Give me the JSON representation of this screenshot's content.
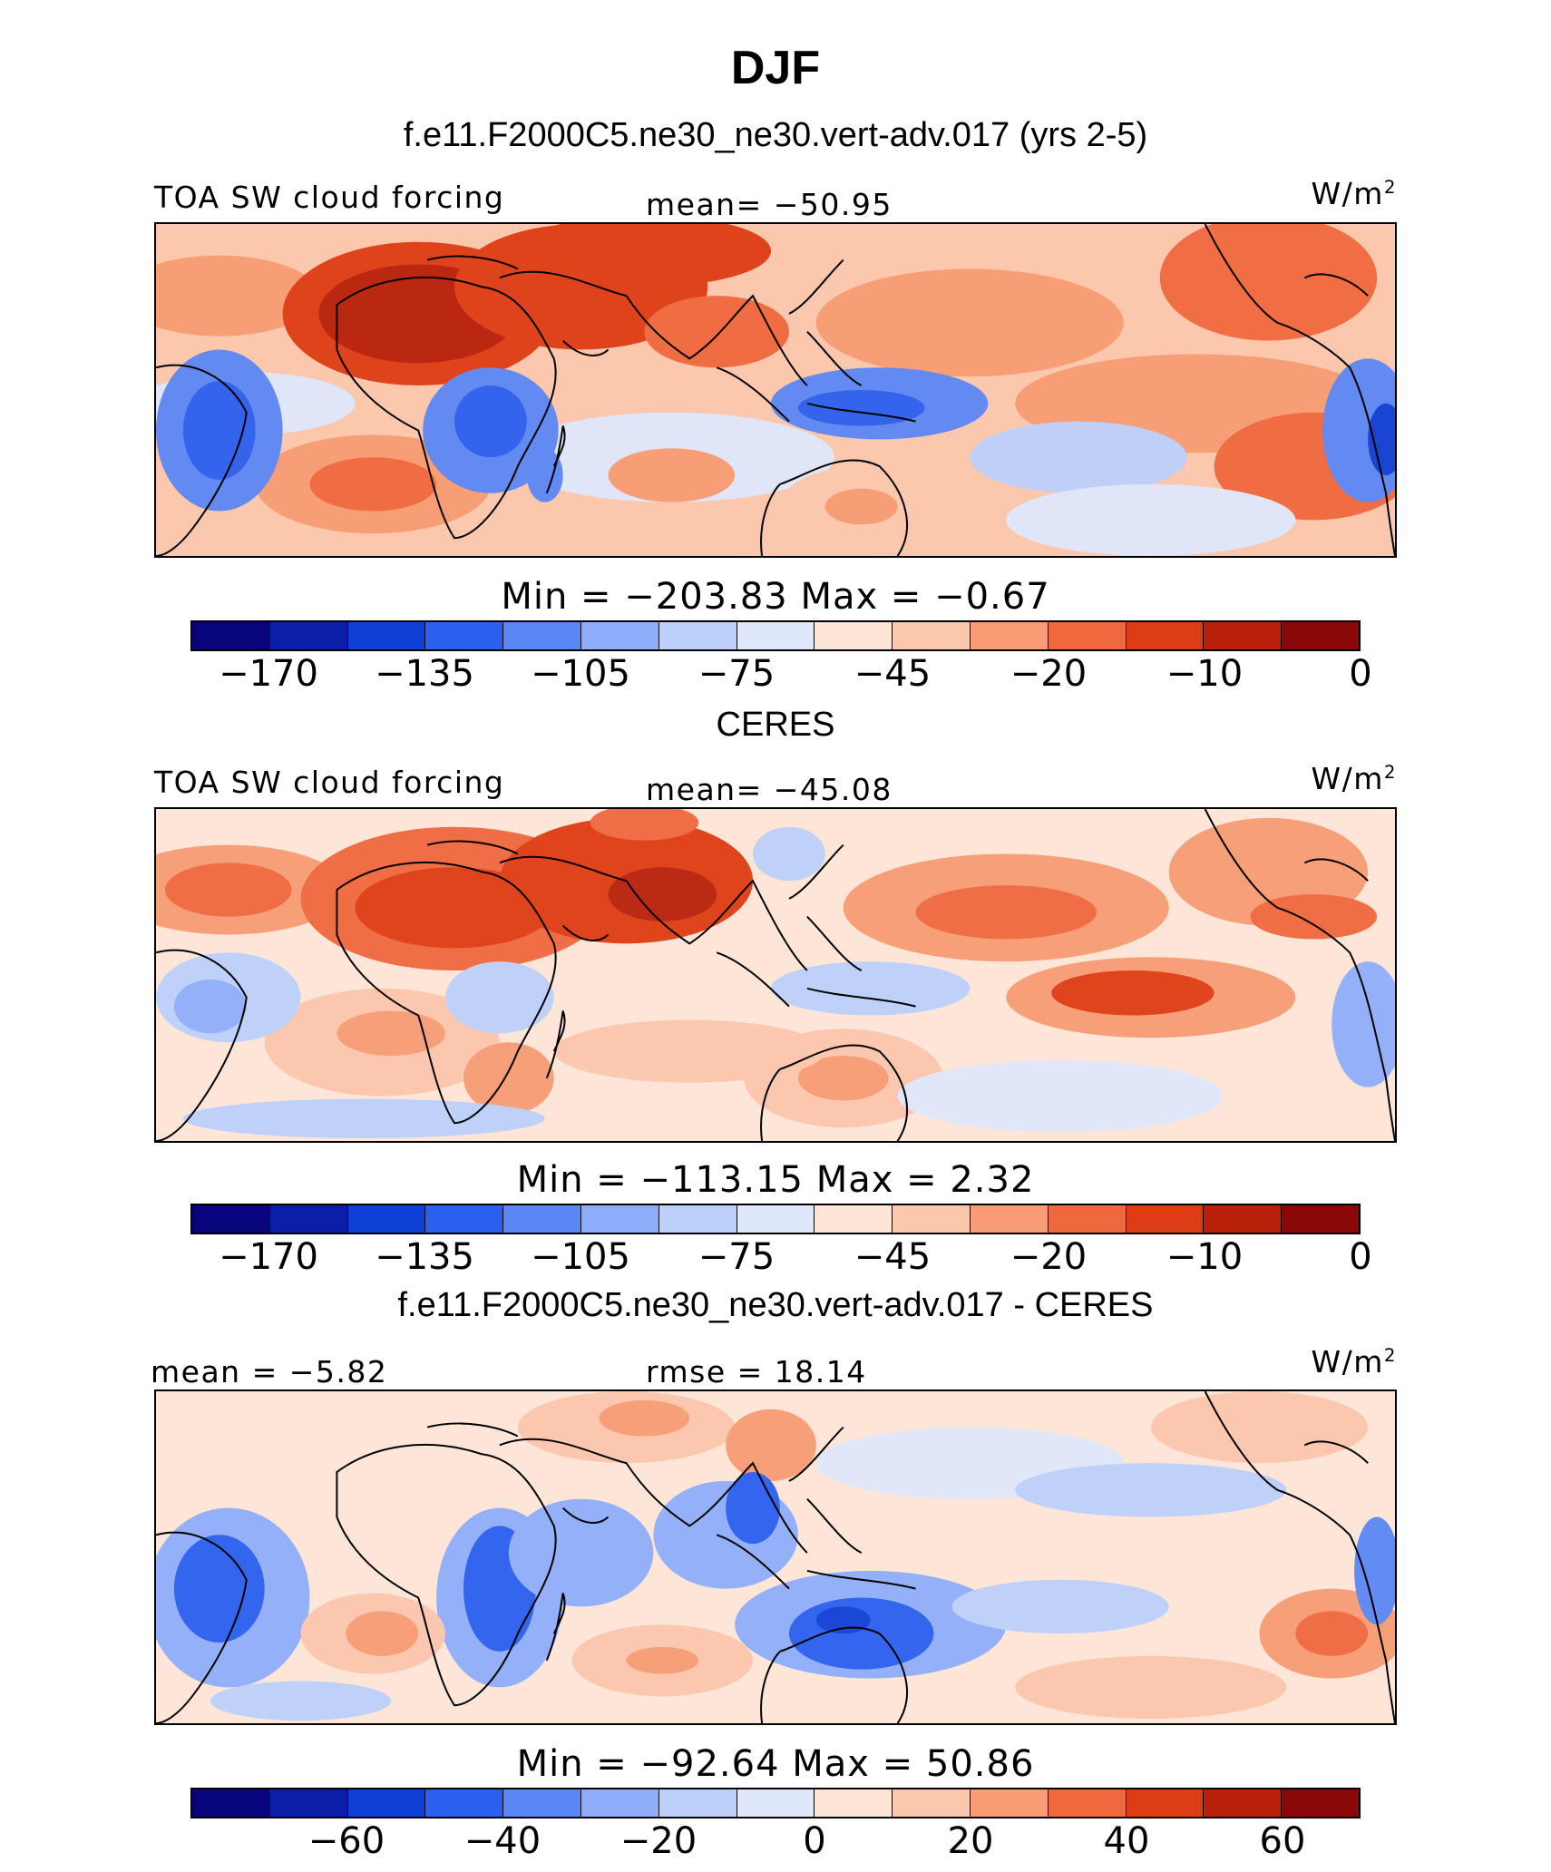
{
  "title": "DJF",
  "colors": {
    "palette": [
      "#08047a",
      "#0a1ea8",
      "#0e3fd6",
      "#2a5ff0",
      "#5a87f5",
      "#8eaefb",
      "#bcd0fb",
      "#dfe8fb",
      "#fde6d8",
      "#fbc7ad",
      "#f79c74",
      "#f0683e",
      "#de3c14",
      "#b8200a",
      "#8a0808"
    ],
    "land_outline": "#000000"
  },
  "panels": [
    {
      "subtitle": "f.e11.F2000C5.ne30_ne30.vert-adv.017 (yrs 2-5)",
      "left_label": "TOA SW cloud forcing",
      "center_label": "mean= −50.95",
      "units_base": "W/m",
      "units_exp": "2",
      "minmax": "Min = −203.83 Max = −0.67",
      "colorbar_ticks": [
        "−170",
        "−135",
        "−105",
        "−75",
        "−45",
        "−20",
        "−10",
        "0"
      ]
    },
    {
      "subtitle": "CERES",
      "left_label": "TOA SW cloud forcing",
      "center_label": "mean= −45.08",
      "units_base": "W/m",
      "units_exp": "2",
      "minmax": "Min = −113.15 Max = 2.32",
      "colorbar_ticks": [
        "−170",
        "−135",
        "−105",
        "−75",
        "−45",
        "−20",
        "−10",
        "0"
      ]
    },
    {
      "subtitle": "f.e11.F2000C5.ne30_ne30.vert-adv.017 - CERES",
      "left_label": "mean = −5.82",
      "center_label": "rmse = 18.14",
      "units_base": "W/m",
      "units_exp": "2",
      "minmax": "Min = −92.64 Max = 50.86",
      "colorbar_ticks": [
        "−60",
        "−40",
        "−20",
        "0",
        "20",
        "40",
        "60"
      ]
    }
  ],
  "chart_data": [
    {
      "type": "heatmap",
      "title": "TOA SW cloud forcing",
      "units": "W/m2",
      "mean": -50.95,
      "min": -203.83,
      "max": -0.67,
      "colorbar_ticks": [
        -170,
        -135,
        -105,
        -75,
        -45,
        -20,
        -10,
        0
      ]
    },
    {
      "type": "heatmap",
      "title": "TOA SW cloud forcing",
      "units": "W/m2",
      "mean": -45.08,
      "min": -113.15,
      "max": 2.32,
      "colorbar_ticks": [
        -170,
        -135,
        -105,
        -75,
        -45,
        -20,
        -10,
        0
      ]
    },
    {
      "type": "heatmap",
      "units": "W/m2",
      "mean": -5.82,
      "rmse": 18.14,
      "min": -92.64,
      "max": 50.86,
      "colorbar_ticks": [
        -60,
        -40,
        -20,
        0,
        20,
        40,
        60
      ]
    }
  ]
}
